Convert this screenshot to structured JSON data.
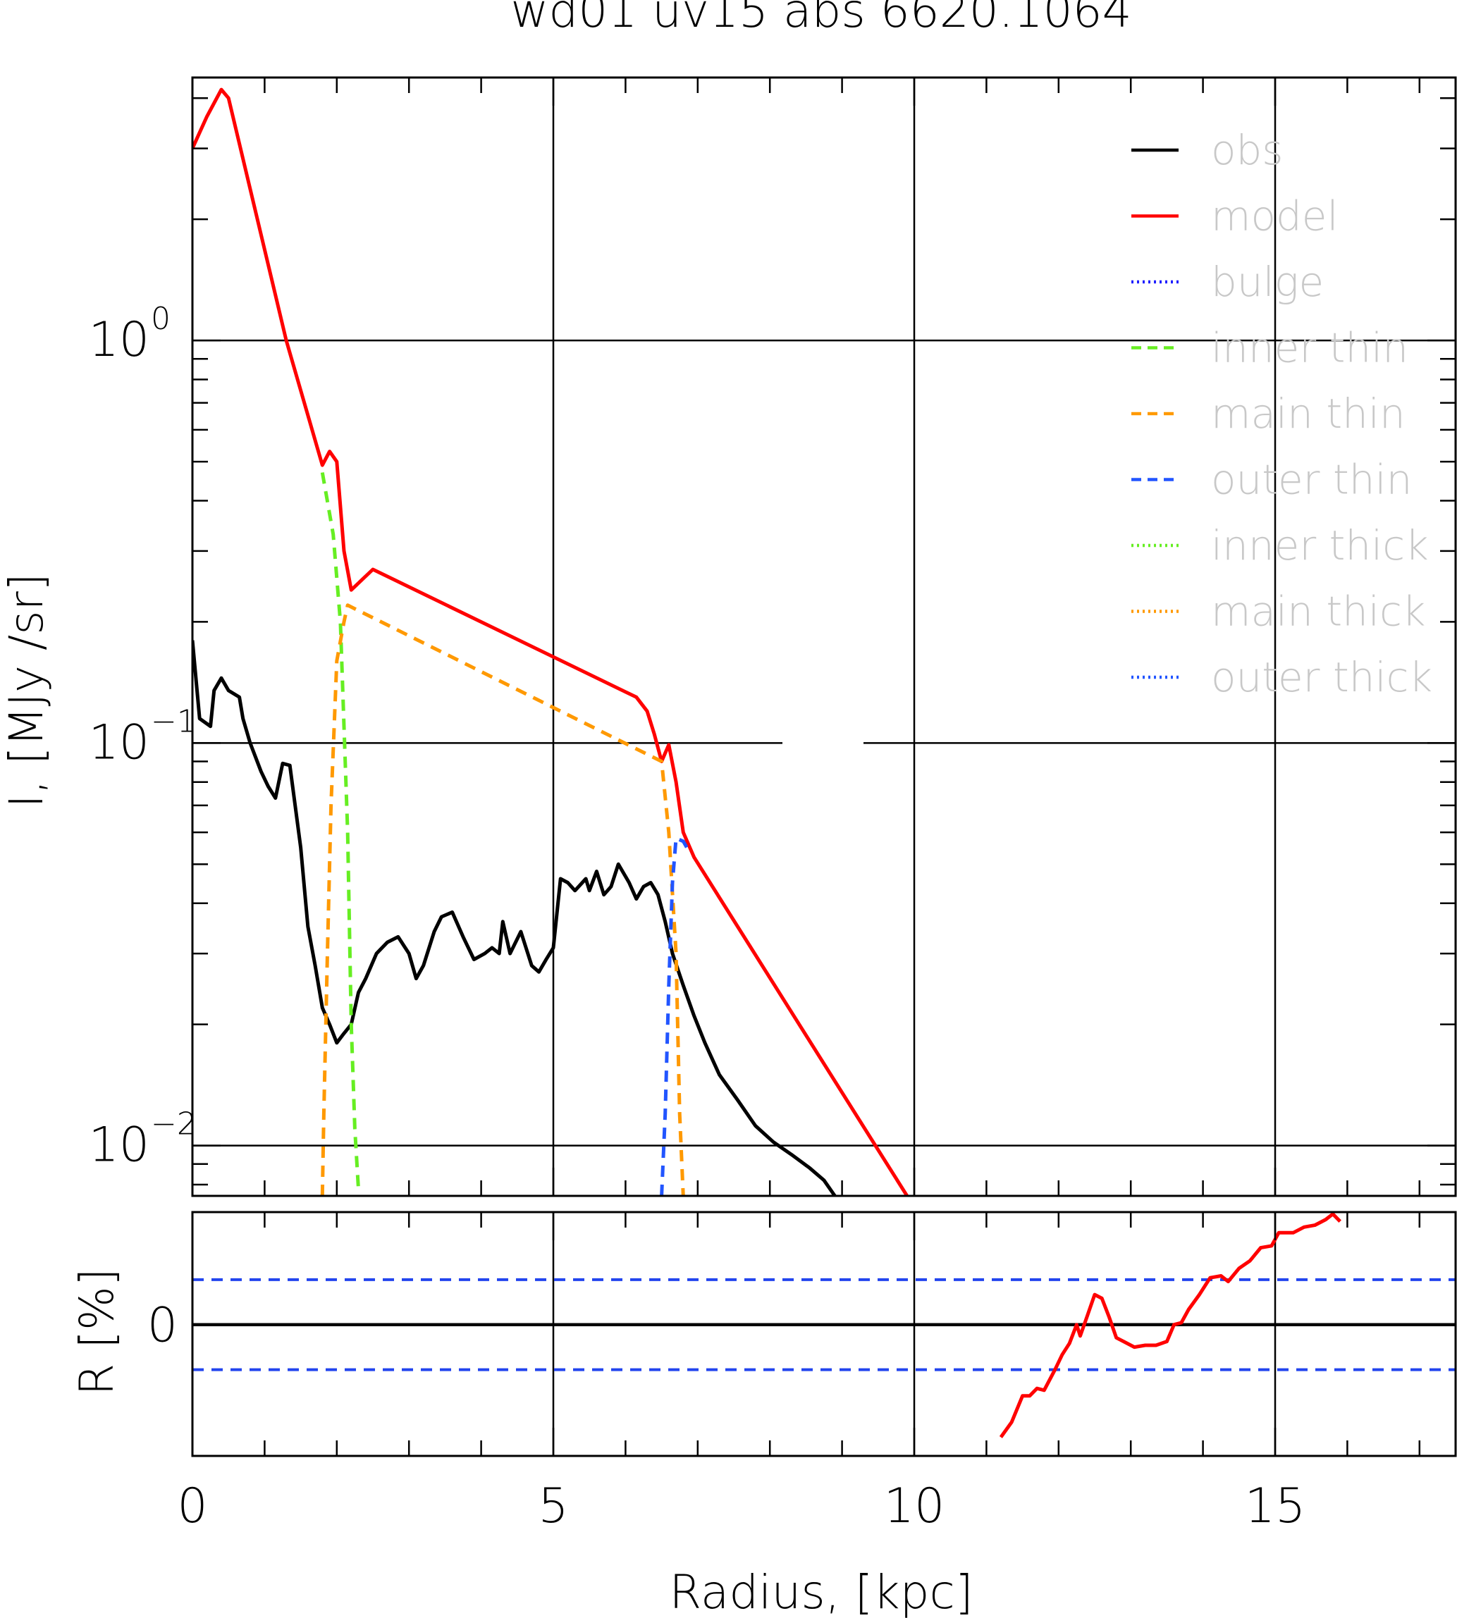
{
  "chart_data": {
    "type": "line",
    "title": "wd01 uv15 abs 6620.1064",
    "xlabel": "Radius, [kpc]",
    "ylabel": "I, [MJy /sr]",
    "xlim": [
      0,
      17.5
    ],
    "ylim": [
      0.0075,
      4.5
    ],
    "yscale": "log",
    "grid": true,
    "legend_position": "top-right",
    "x_ticks": [
      {
        "value": 0,
        "label": "0"
      },
      {
        "value": 5,
        "label": "5"
      },
      {
        "value": 10,
        "label": "10"
      },
      {
        "value": 15,
        "label": "15"
      }
    ],
    "y_ticks": [
      {
        "value": 0.01,
        "base": "10",
        "exp": "−2"
      },
      {
        "value": 0.1,
        "base": "10",
        "exp": "−1"
      },
      {
        "value": 1,
        "base": "10",
        "exp": "0"
      }
    ],
    "legend": [
      {
        "label": "obs",
        "color": "#000000",
        "style": "solid"
      },
      {
        "label": "model",
        "color": "#ff0000",
        "style": "solid"
      },
      {
        "label": "bulge",
        "color": "#2020ff",
        "style": "dotted"
      },
      {
        "label": "inner thin",
        "color": "#66ee22",
        "style": "dashed"
      },
      {
        "label": "main thin",
        "color": "#ff9900",
        "style": "dashed"
      },
      {
        "label": "outer thin",
        "color": "#2255ff",
        "style": "dashed"
      },
      {
        "label": "inner thick",
        "color": "#66ee22",
        "style": "dotted"
      },
      {
        "label": "main thick",
        "color": "#ff9900",
        "style": "dotted"
      },
      {
        "label": "outer thick",
        "color": "#2255ff",
        "style": "dotted"
      }
    ],
    "series": [
      {
        "name": "obs",
        "color": "#000000",
        "style": "solid",
        "x": [
          0,
          0.1,
          0.25,
          0.3,
          0.4,
          0.5,
          0.65,
          0.7,
          0.8,
          0.95,
          1.05,
          1.15,
          1.25,
          1.35,
          1.5,
          1.6,
          1.7,
          1.8,
          1.9,
          2.0,
          2.1,
          2.2,
          2.3,
          2.4,
          2.55,
          2.7,
          2.85,
          3.0,
          3.1,
          3.2,
          3.35,
          3.45,
          3.6,
          3.75,
          3.9,
          4.05,
          4.15,
          4.25,
          4.3,
          4.4,
          4.55,
          4.7,
          4.8,
          4.9,
          5.0,
          5.1,
          5.2,
          5.3,
          5.45,
          5.5,
          5.6,
          5.7,
          5.8,
          5.9,
          6.05,
          6.15,
          6.25,
          6.35,
          6.45,
          6.55,
          6.65,
          6.8,
          6.95,
          7.1,
          7.3,
          7.55,
          7.8,
          8.05,
          8.3,
          8.55,
          8.75,
          8.9
        ],
        "y": [
          0.18,
          0.115,
          0.11,
          0.135,
          0.145,
          0.135,
          0.13,
          0.115,
          0.1,
          0.085,
          0.078,
          0.073,
          0.089,
          0.088,
          0.055,
          0.035,
          0.028,
          0.022,
          0.02,
          0.018,
          0.019,
          0.02,
          0.024,
          0.026,
          0.03,
          0.032,
          0.033,
          0.03,
          0.026,
          0.028,
          0.034,
          0.037,
          0.038,
          0.033,
          0.029,
          0.03,
          0.031,
          0.03,
          0.036,
          0.03,
          0.034,
          0.028,
          0.027,
          0.029,
          0.031,
          0.046,
          0.045,
          0.043,
          0.046,
          0.043,
          0.048,
          0.042,
          0.044,
          0.05,
          0.045,
          0.041,
          0.044,
          0.045,
          0.042,
          0.036,
          0.03,
          0.025,
          0.021,
          0.018,
          0.015,
          0.013,
          0.0112,
          0.0102,
          0.0095,
          0.0088,
          0.0082,
          0.0075
        ]
      },
      {
        "name": "model",
        "color": "#ff0000",
        "style": "solid",
        "x": [
          0,
          0.2,
          0.4,
          0.5,
          1.3,
          1.8,
          1.9,
          2.0,
          2.1,
          2.2,
          2.5,
          6.15,
          6.3,
          6.4,
          6.5,
          6.6,
          6.7,
          6.8,
          6.95,
          10.05
        ],
        "y": [
          3.0,
          3.6,
          4.2,
          4.0,
          1.0,
          0.49,
          0.53,
          0.5,
          0.3,
          0.24,
          0.27,
          0.13,
          0.12,
          0.105,
          0.09,
          0.099,
          0.08,
          0.06,
          0.052,
          0.0068
        ]
      },
      {
        "name": "inner thin",
        "color": "#66ee22",
        "style": "dashed",
        "x": [
          1.8,
          1.95,
          2.05,
          2.15,
          2.2,
          2.25,
          2.3
        ],
        "y": [
          0.47,
          0.33,
          0.2,
          0.06,
          0.02,
          0.011,
          0.0078
        ]
      },
      {
        "name": "main thin",
        "color": "#ff9900",
        "style": "dashed",
        "x": [
          1.8,
          1.82,
          1.87,
          1.92,
          2.0,
          2.1,
          2.15,
          6.5,
          6.6,
          6.7,
          6.75,
          6.8
        ],
        "y": [
          0.0075,
          0.012,
          0.03,
          0.07,
          0.16,
          0.2,
          0.22,
          0.09,
          0.06,
          0.03,
          0.012,
          0.0075
        ]
      },
      {
        "name": "outer thin",
        "color": "#2255ff",
        "style": "dashed",
        "x": [
          6.5,
          6.55,
          6.6,
          6.65,
          6.7,
          6.8,
          6.9
        ],
        "y": [
          0.0075,
          0.012,
          0.025,
          0.045,
          0.058,
          0.057,
          0.053
        ]
      }
    ],
    "residual": {
      "ylabel": "R [%]",
      "ylim": [
        -3.5,
        3.0
      ],
      "y_ticks": [
        {
          "value": 0,
          "label": "0"
        }
      ],
      "bounds": [
        1.2,
        -1.2
      ],
      "bounds_color": "#2244ee",
      "series": {
        "name": "model",
        "color": "#ff0000",
        "x": [
          11.2,
          11.35,
          11.5,
          11.6,
          11.7,
          11.8,
          11.95,
          12.05,
          12.15,
          12.25,
          12.3,
          12.4,
          12.5,
          12.6,
          12.7,
          12.8,
          12.9,
          13.05,
          13.2,
          13.35,
          13.5,
          13.6,
          13.7,
          13.8,
          13.95,
          14.1,
          14.25,
          14.35,
          14.5,
          14.65,
          14.8,
          14.95,
          15.05,
          15.1,
          15.25,
          15.4,
          15.55,
          15.7,
          15.8,
          15.9
        ],
        "y": [
          -3.0,
          -2.6,
          -1.9,
          -1.9,
          -1.7,
          -1.75,
          -1.2,
          -0.8,
          -0.5,
          0.0,
          -0.3,
          0.25,
          0.8,
          0.7,
          0.2,
          -0.35,
          -0.45,
          -0.6,
          -0.55,
          -0.55,
          -0.45,
          0.0,
          0.05,
          0.4,
          0.8,
          1.25,
          1.3,
          1.15,
          1.5,
          1.7,
          2.05,
          2.1,
          2.45,
          2.45,
          2.45,
          2.6,
          2.65,
          2.8,
          2.95,
          2.75
        ]
      }
    }
  }
}
